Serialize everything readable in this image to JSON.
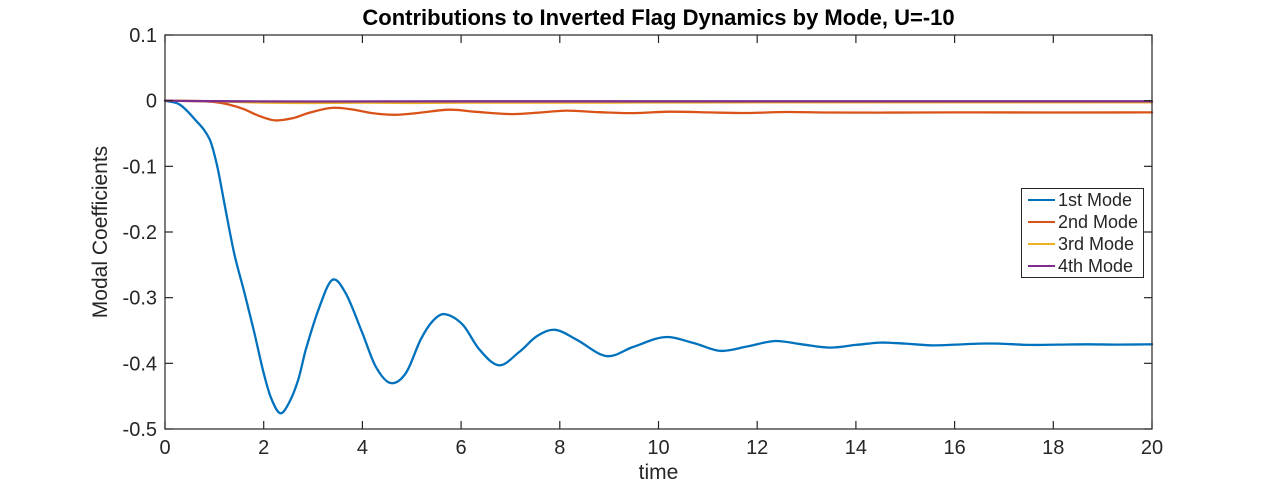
{
  "window": {
    "background": "#ffffff"
  },
  "chart_data": {
    "type": "line",
    "title": "Contributions to Inverted Flag Dynamics by Mode, U=-10",
    "xlabel": "time",
    "ylabel": "Modal Coefficients",
    "xlim": [
      0,
      20
    ],
    "ylim": [
      -0.5,
      0.1
    ],
    "xticks": [
      0,
      2,
      4,
      6,
      8,
      10,
      12,
      14,
      16,
      18,
      20
    ],
    "xtick_labels": [
      "0",
      "2",
      "4",
      "6",
      "8",
      "10",
      "12",
      "14",
      "16",
      "18",
      "20"
    ],
    "yticks": [
      0.1,
      0,
      -0.1,
      -0.2,
      -0.3,
      -0.4,
      -0.5
    ],
    "ytick_labels": [
      "0.1",
      "0",
      "-0.1",
      "-0.2",
      "-0.3",
      "-0.4",
      "-0.5"
    ],
    "grid": false,
    "legend": {
      "position": "inside-right",
      "border_color": "#262626"
    },
    "colors": {
      "axis": "#262626",
      "title": "#000000"
    },
    "series": [
      {
        "name": "1st Mode",
        "color": "#0072BD",
        "points": [
          [
            0,
            0
          ],
          [
            0.3,
            -0.006
          ],
          [
            0.6,
            -0.028
          ],
          [
            0.9,
            -0.058
          ],
          [
            1.05,
            -0.097
          ],
          [
            1.2,
            -0.155
          ],
          [
            1.4,
            -0.232
          ],
          [
            1.6,
            -0.29
          ],
          [
            1.8,
            -0.35
          ],
          [
            2.0,
            -0.415
          ],
          [
            2.15,
            -0.453
          ],
          [
            2.33,
            -0.476
          ],
          [
            2.5,
            -0.462
          ],
          [
            2.7,
            -0.425
          ],
          [
            2.85,
            -0.38
          ],
          [
            3.12,
            -0.316
          ],
          [
            3.39,
            -0.273
          ],
          [
            3.66,
            -0.293
          ],
          [
            4.0,
            -0.354
          ],
          [
            4.27,
            -0.405
          ],
          [
            4.57,
            -0.43
          ],
          [
            4.88,
            -0.415
          ],
          [
            5.18,
            -0.364
          ],
          [
            5.42,
            -0.336
          ],
          [
            5.66,
            -0.325
          ],
          [
            6.03,
            -0.341
          ],
          [
            6.37,
            -0.379
          ],
          [
            6.77,
            -0.403
          ],
          [
            7.19,
            -0.382
          ],
          [
            7.53,
            -0.359
          ],
          [
            7.9,
            -0.349
          ],
          [
            8.34,
            -0.364
          ],
          [
            8.95,
            -0.389
          ],
          [
            9.49,
            -0.375
          ],
          [
            10.13,
            -0.36
          ],
          [
            10.71,
            -0.369
          ],
          [
            11.25,
            -0.381
          ],
          [
            11.82,
            -0.374
          ],
          [
            12.36,
            -0.366
          ],
          [
            12.9,
            -0.371
          ],
          [
            13.47,
            -0.376
          ],
          [
            14.0,
            -0.372
          ],
          [
            14.49,
            -0.3685
          ],
          [
            15.0,
            -0.37
          ],
          [
            15.5,
            -0.3725
          ],
          [
            15.9,
            -0.372
          ],
          [
            16.5,
            -0.37
          ],
          [
            16.9,
            -0.37
          ],
          [
            17.5,
            -0.372
          ],
          [
            18.1,
            -0.3715
          ],
          [
            18.7,
            -0.371
          ],
          [
            19.3,
            -0.3715
          ],
          [
            20,
            -0.371
          ]
        ]
      },
      {
        "name": "2nd Mode",
        "color": "#D95319",
        "points": [
          [
            0,
            0
          ],
          [
            0.6,
            -0.0005
          ],
          [
            1.0,
            -0.002
          ],
          [
            1.3,
            -0.006
          ],
          [
            1.6,
            -0.013
          ],
          [
            1.9,
            -0.023
          ],
          [
            2.23,
            -0.03
          ],
          [
            2.6,
            -0.0265
          ],
          [
            2.9,
            -0.019
          ],
          [
            3.38,
            -0.011
          ],
          [
            3.8,
            -0.0135
          ],
          [
            4.2,
            -0.019
          ],
          [
            4.66,
            -0.0215
          ],
          [
            5.1,
            -0.019
          ],
          [
            5.77,
            -0.0137
          ],
          [
            6.3,
            -0.017
          ],
          [
            7.03,
            -0.0205
          ],
          [
            7.6,
            -0.018
          ],
          [
            8.14,
            -0.0152
          ],
          [
            8.8,
            -0.0175
          ],
          [
            9.5,
            -0.019
          ],
          [
            10.2,
            -0.0168
          ],
          [
            11.0,
            -0.0178
          ],
          [
            11.8,
            -0.0188
          ],
          [
            12.6,
            -0.0172
          ],
          [
            13.4,
            -0.018
          ],
          [
            14.5,
            -0.0182
          ],
          [
            16,
            -0.0178
          ],
          [
            18,
            -0.018
          ],
          [
            20,
            -0.0179
          ]
        ]
      },
      {
        "name": "3rd Mode",
        "color": "#EDB120",
        "points": [
          [
            0,
            0
          ],
          [
            0.5,
            -0.0005
          ],
          [
            1.0,
            -0.001
          ],
          [
            1.5,
            -0.002
          ],
          [
            2.0,
            -0.003
          ],
          [
            3.0,
            -0.0035
          ],
          [
            4.0,
            -0.003
          ],
          [
            5.0,
            -0.0035
          ],
          [
            6.0,
            -0.003
          ],
          [
            8.0,
            -0.003
          ],
          [
            10.0,
            -0.0028
          ],
          [
            12.0,
            -0.0027
          ],
          [
            14.0,
            -0.0026
          ],
          [
            16.0,
            -0.0026
          ],
          [
            18.0,
            -0.0026
          ],
          [
            20.0,
            -0.0026
          ]
        ]
      },
      {
        "name": "4th Mode",
        "color": "#7E2F8E",
        "points": [
          [
            0,
            0
          ],
          [
            0.5,
            -0.0005
          ],
          [
            1.5,
            -0.001
          ],
          [
            3.0,
            -0.0012
          ],
          [
            6.0,
            -0.001
          ],
          [
            10.0,
            -0.001
          ],
          [
            15.0,
            -0.001
          ],
          [
            20.0,
            -0.001
          ]
        ]
      }
    ]
  }
}
